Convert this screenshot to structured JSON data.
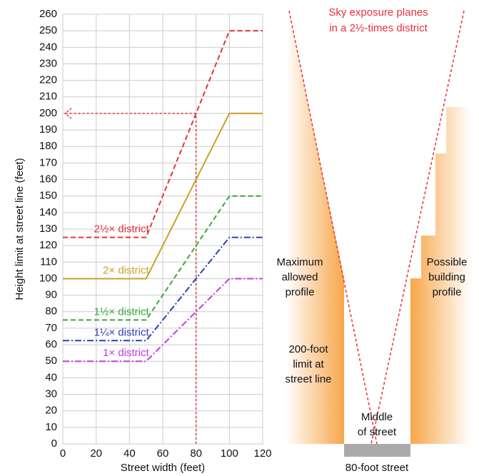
{
  "chart_data": {
    "type": "line",
    "xlabel": "Street width (feet)",
    "ylabel": "Height limit at street line (feet)",
    "x": [
      0,
      50,
      100,
      120
    ],
    "series": [
      {
        "name": "2½× district",
        "color": "#e8303a",
        "linestyle": "dashed",
        "values": [
          125,
          125,
          250,
          250
        ]
      },
      {
        "name": "2× district",
        "color": "#c9a227",
        "linestyle": "solid",
        "values": [
          100,
          100,
          200,
          200
        ]
      },
      {
        "name": "1½× district",
        "color": "#3aa83a",
        "linestyle": "dashed",
        "values": [
          75,
          75,
          150,
          150
        ]
      },
      {
        "name": "1¼× district",
        "color": "#2c3fb8",
        "linestyle": "dashdot",
        "values": [
          62.5,
          62.5,
          125,
          125
        ]
      },
      {
        "name": "1× district",
        "color": "#c23ce0",
        "linestyle": "dashdot",
        "values": [
          50,
          50,
          100,
          100
        ]
      }
    ],
    "reference": {
      "x": 80,
      "y": 200,
      "color": "#e8303a"
    },
    "xlim": [
      0,
      120
    ],
    "xticks": [
      0,
      20,
      40,
      60,
      80,
      100,
      120
    ],
    "ylim": [
      0,
      260
    ],
    "yticks": [
      0,
      10,
      20,
      30,
      40,
      50,
      60,
      70,
      80,
      90,
      100,
      110,
      120,
      130,
      140,
      150,
      160,
      170,
      180,
      190,
      200,
      210,
      220,
      230,
      240,
      250,
      260
    ],
    "grid": true
  },
  "diagram": {
    "title": [
      "Sky exposure planes",
      "in a 2½-times district"
    ],
    "left_label": [
      "Maximum",
      "allowed",
      "profile"
    ],
    "right_label": [
      "Possible",
      "building",
      "profile"
    ],
    "limit_label": [
      "200-foot",
      "limit at",
      "street line"
    ],
    "middle_label": [
      "Middle",
      "of street"
    ],
    "street_label": "80-foot street"
  }
}
